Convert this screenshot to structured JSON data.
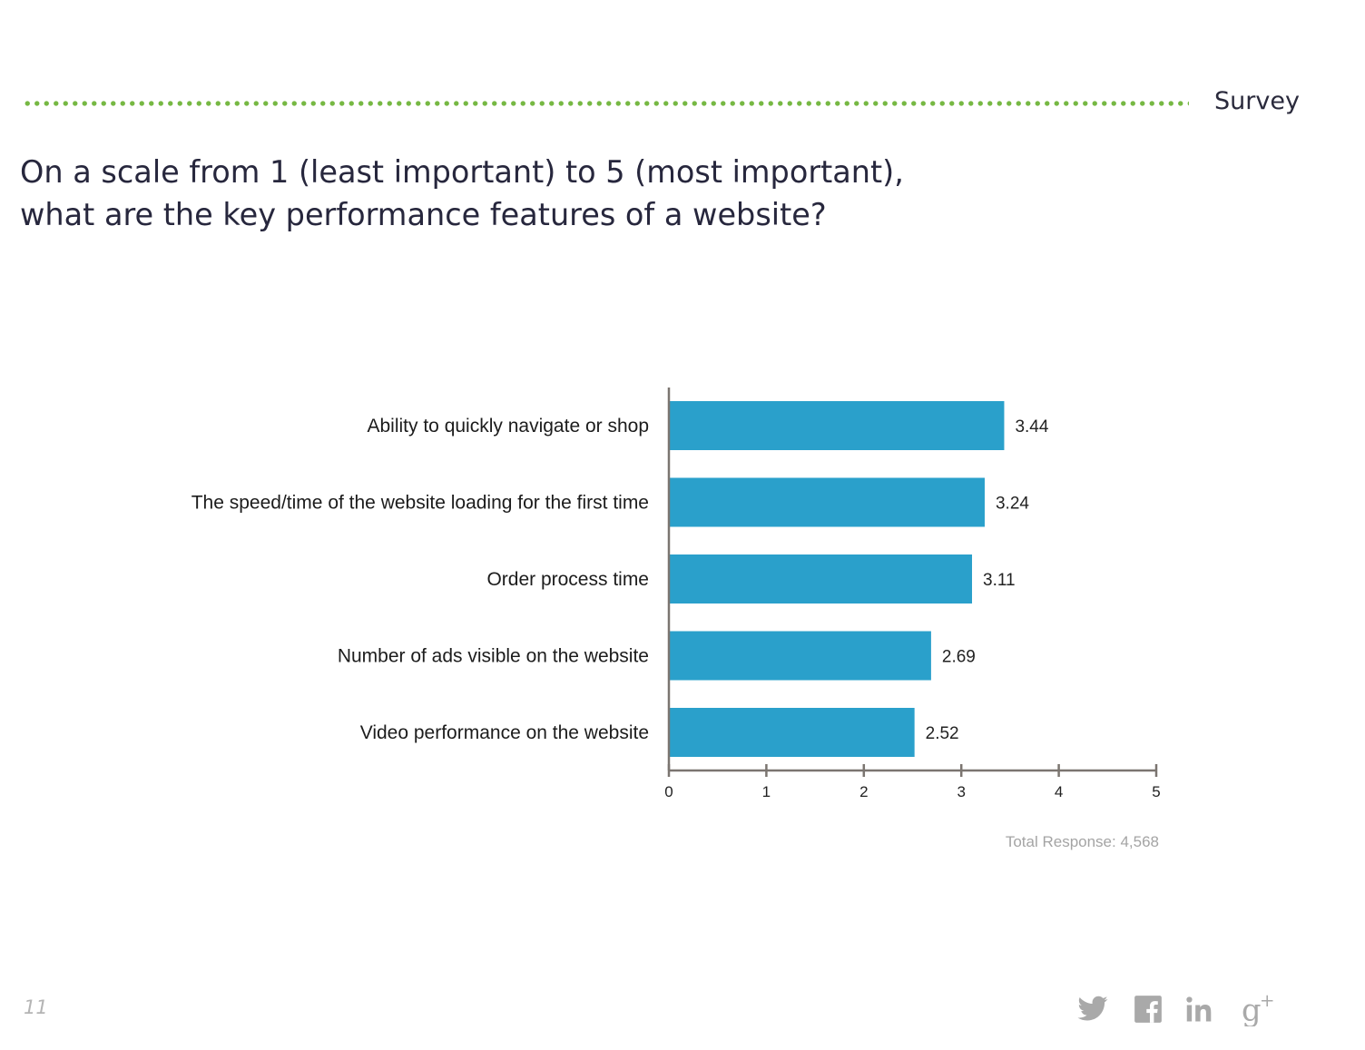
{
  "header": {
    "section_label": "Survey"
  },
  "question": {
    "line1": "On a scale from 1 (least important) to 5 (most important),",
    "line2": "what are the key performance features of a website?"
  },
  "chart_data": {
    "type": "bar",
    "orientation": "horizontal",
    "categories": [
      "Ability to quickly navigate or shop",
      "The speed/time of the website loading for the first time",
      "Order process time",
      "Number of ads visible on the website",
      "Video performance on the website"
    ],
    "values": [
      3.44,
      3.24,
      3.11,
      2.69,
      2.52
    ],
    "value_labels": [
      "3.44",
      "3.24",
      "3.11",
      "2.69",
      "2.52"
    ],
    "xlim": [
      0,
      5
    ],
    "xticks": [
      "0",
      "1",
      "2",
      "3",
      "4",
      "5"
    ],
    "grid": false,
    "bar_color": "#2aa0cb",
    "note": "Total Response: 4,568"
  },
  "footer": {
    "page_number": "11",
    "social_icons": [
      "twitter-icon",
      "facebook-icon",
      "linkedin-icon",
      "google-plus-icon"
    ],
    "icon_color": "#a9a9a9"
  }
}
